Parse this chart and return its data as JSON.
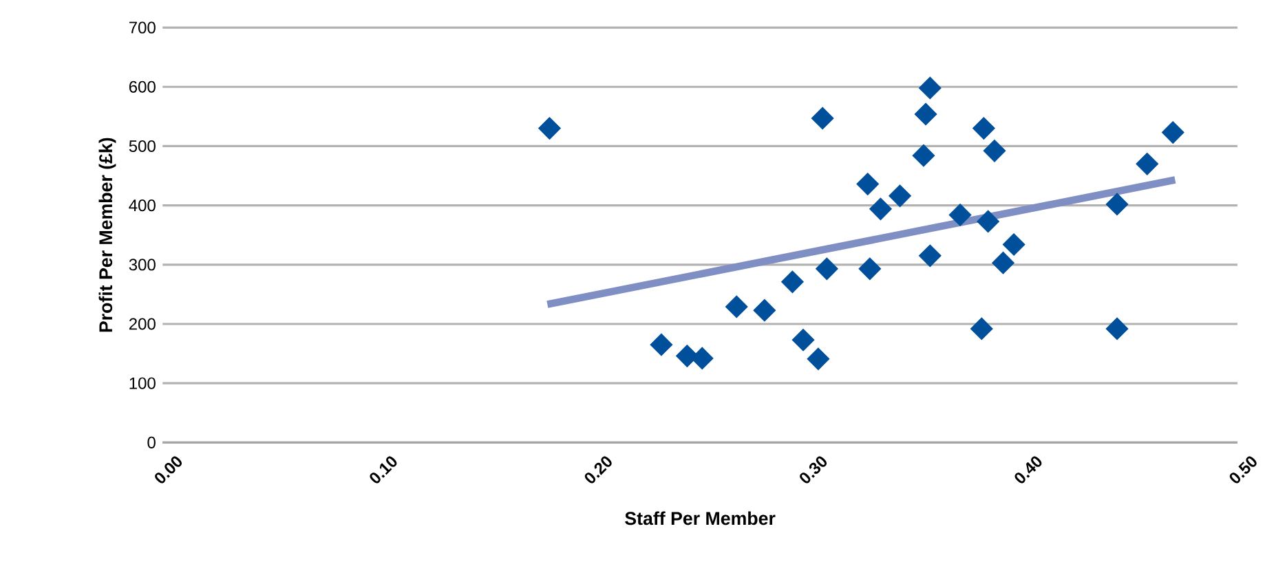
{
  "chart_data": {
    "type": "scatter",
    "xlabel": "Staff Per Member",
    "ylabel": "Profit Per Member (£k)",
    "xlim": [
      0,
      0.5
    ],
    "ylim": [
      0,
      700
    ],
    "xticks": [
      {
        "value": 0,
        "label": "0.00"
      },
      {
        "value": 0.1,
        "label": "0.10"
      },
      {
        "value": 0.2,
        "label": "0.20"
      },
      {
        "value": 0.3,
        "label": "0.30"
      },
      {
        "value": 0.4,
        "label": "0.40"
      },
      {
        "value": 0.5,
        "label": "0.50"
      }
    ],
    "yticks": [
      0,
      100,
      200,
      300,
      400,
      500,
      600,
      700
    ],
    "grid": "y",
    "marker": "diamond",
    "series": [
      {
        "color": "#004f9b",
        "x": [
          0.18,
          0.232,
          0.244,
          0.251,
          0.267,
          0.28,
          0.293,
          0.298,
          0.305,
          0.307,
          0.309,
          0.328,
          0.334,
          0.343,
          0.329,
          0.354,
          0.355,
          0.357,
          0.357,
          0.371,
          0.381,
          0.382,
          0.384,
          0.387,
          0.391,
          0.396,
          0.444,
          0.444,
          0.458,
          0.47
        ],
        "values": [
          530,
          165,
          146,
          142,
          229,
          223,
          271,
          173,
          141,
          547,
          293,
          436,
          394,
          416,
          293,
          484,
          554,
          598,
          315,
          384,
          192,
          530,
          373,
          492,
          303,
          334,
          402,
          192,
          470,
          523
        ]
      },
      {
        "type": "line",
        "marker": "none",
        "color": "#7f8fc4",
        "x": [
          0.179,
          0.471
        ],
        "values": [
          233,
          443
        ]
      }
    ]
  }
}
